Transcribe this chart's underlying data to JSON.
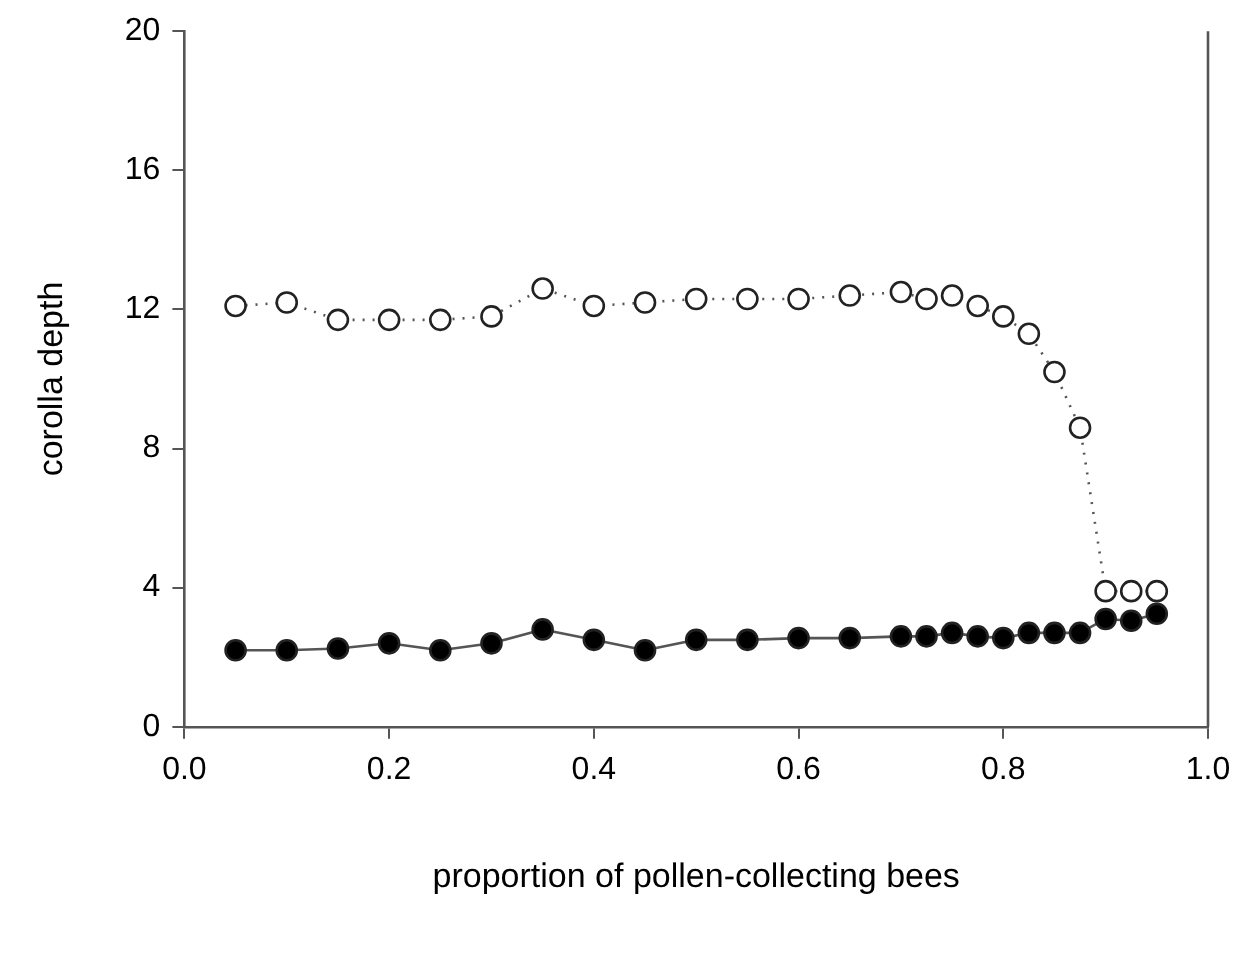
{
  "chart_data": {
    "type": "line",
    "xlabel": "proportion of pollen-collecting bees",
    "ylabel": "corolla depth",
    "x": [
      0.05,
      0.1,
      0.15,
      0.2,
      0.25,
      0.3,
      0.35,
      0.4,
      0.45,
      0.5,
      0.55,
      0.6,
      0.65,
      0.7,
      0.725,
      0.75,
      0.775,
      0.8,
      0.825,
      0.85,
      0.875,
      0.9,
      0.925,
      0.95
    ],
    "series": [
      {
        "color": "#ffffff",
        "line_style": "dotted",
        "values": [
          12.1,
          12.2,
          11.7,
          11.7,
          11.7,
          11.8,
          12.6,
          12.1,
          12.2,
          12.3,
          12.3,
          12.3,
          12.4,
          12.5,
          12.3,
          12.4,
          12.1,
          11.8,
          11.3,
          10.2,
          8.6,
          3.9,
          3.9,
          3.9
        ]
      },
      {
        "color": "#000000",
        "line_style": "solid",
        "values": [
          2.2,
          2.2,
          2.25,
          2.4,
          2.2,
          2.4,
          2.8,
          2.5,
          2.2,
          2.5,
          2.5,
          2.55,
          2.55,
          2.6,
          2.6,
          2.7,
          2.6,
          2.55,
          2.7,
          2.7,
          2.7,
          3.1,
          3.05,
          3.25
        ]
      }
    ],
    "xlim": [
      0,
      1
    ],
    "xticks": [
      {
        "value": 0,
        "label": "0.0"
      },
      {
        "value": 0.2,
        "label": "0.2"
      },
      {
        "value": 0.4,
        "label": "0.4"
      },
      {
        "value": 0.6,
        "label": "0.6"
      },
      {
        "value": 0.8,
        "label": "0.8"
      },
      {
        "value": 1,
        "label": "1.0"
      }
    ],
    "ylim": [
      0,
      20
    ],
    "yticks": [
      0,
      4,
      8,
      12,
      16,
      20
    ],
    "grid": false,
    "legend": false,
    "marker": "circle"
  }
}
